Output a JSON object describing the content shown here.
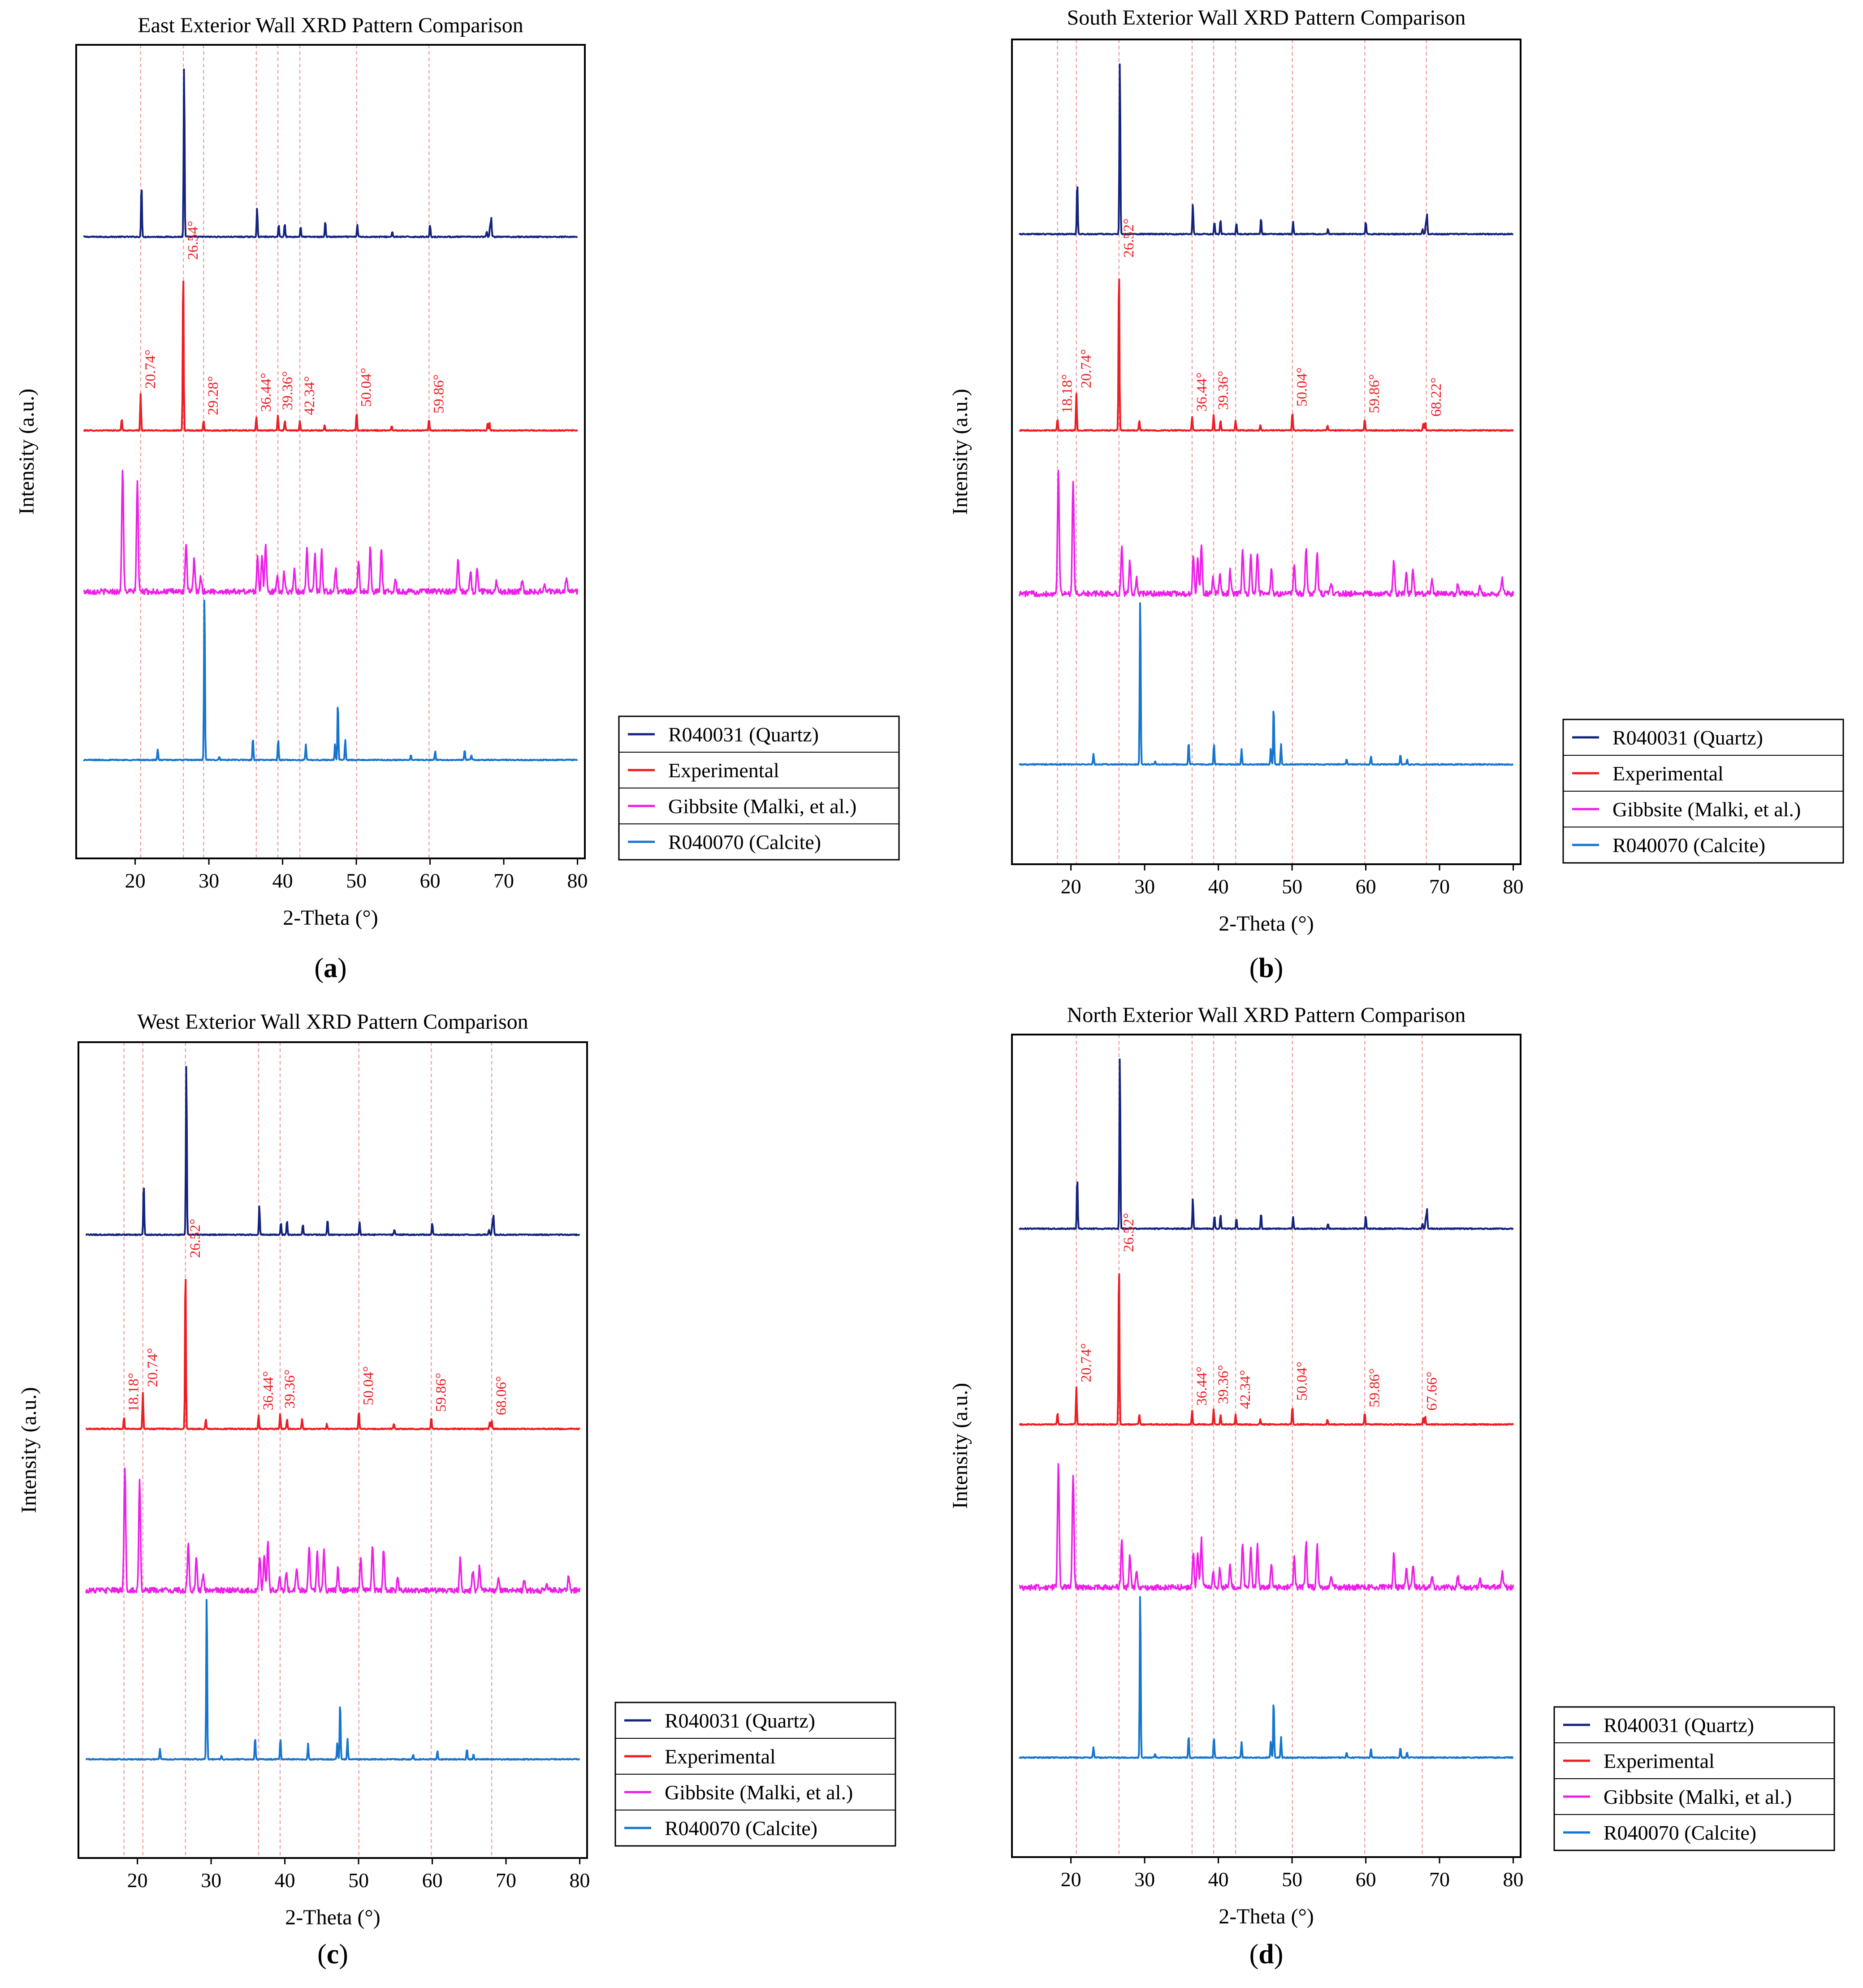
{
  "colors": {
    "quartz": "#13237e",
    "experimental": "#ee1d23",
    "gibbsite": "#ed1ee8",
    "calcite": "#1675cf",
    "guide": "#f3a1a6",
    "axis": "#000000"
  },
  "legend_entries": [
    {
      "label": "R040031 (Quartz)",
      "color_key": "quartz"
    },
    {
      "label": "Experimental",
      "color_key": "experimental"
    },
    {
      "label": "Gibbsite (Malki, et al.)",
      "color_key": "gibbsite"
    },
    {
      "label": "R040070 (Calcite)",
      "color_key": "calcite"
    }
  ],
  "reference_patterns": {
    "quartz": [
      [
        20.86,
        0.3
      ],
      [
        26.64,
        1.0
      ],
      [
        36.54,
        0.17
      ],
      [
        39.47,
        0.07
      ],
      [
        40.29,
        0.08
      ],
      [
        42.45,
        0.06
      ],
      [
        45.79,
        0.09
      ],
      [
        50.14,
        0.07
      ],
      [
        54.87,
        0.03
      ],
      [
        60.0,
        0.07
      ],
      [
        67.7,
        0.03
      ],
      [
        68.14,
        0.06
      ],
      [
        68.3,
        0.11
      ]
    ],
    "calcite": [
      [
        23.06,
        0.06
      ],
      [
        29.4,
        1.0
      ],
      [
        31.42,
        0.02
      ],
      [
        35.97,
        0.13
      ],
      [
        39.4,
        0.12
      ],
      [
        43.15,
        0.09
      ],
      [
        47.12,
        0.1
      ],
      [
        47.5,
        0.35
      ],
      [
        48.5,
        0.12
      ],
      [
        57.4,
        0.03
      ],
      [
        60.7,
        0.05
      ],
      [
        64.7,
        0.06
      ],
      [
        65.6,
        0.03
      ]
    ],
    "gibbsite": [
      [
        18.3,
        1.0
      ],
      [
        20.3,
        0.9
      ],
      [
        26.9,
        0.38
      ],
      [
        28.0,
        0.26
      ],
      [
        28.9,
        0.12
      ],
      [
        36.6,
        0.28
      ],
      [
        37.2,
        0.28
      ],
      [
        37.7,
        0.38
      ],
      [
        39.3,
        0.12
      ],
      [
        40.2,
        0.15
      ],
      [
        41.6,
        0.18
      ],
      [
        43.3,
        0.36
      ],
      [
        44.4,
        0.3
      ],
      [
        45.3,
        0.33
      ],
      [
        47.2,
        0.18
      ],
      [
        50.3,
        0.25
      ],
      [
        51.9,
        0.36
      ],
      [
        53.4,
        0.33
      ],
      [
        55.3,
        0.1
      ],
      [
        63.8,
        0.26
      ],
      [
        65.5,
        0.16
      ],
      [
        66.4,
        0.19
      ],
      [
        69.0,
        0.1
      ],
      [
        72.5,
        0.08
      ],
      [
        75.5,
        0.06
      ],
      [
        78.5,
        0.12
      ]
    ],
    "experimental": [
      [
        18.18,
        0.07
      ],
      [
        20.74,
        0.22
      ],
      [
        26.52,
        1.0
      ],
      [
        29.28,
        0.06
      ],
      [
        36.44,
        0.08
      ],
      [
        39.36,
        0.09
      ],
      [
        40.3,
        0.06
      ],
      [
        42.34,
        0.06
      ],
      [
        45.7,
        0.03
      ],
      [
        50.04,
        0.11
      ],
      [
        54.8,
        0.03
      ],
      [
        59.86,
        0.07
      ],
      [
        67.8,
        0.04
      ],
      [
        68.06,
        0.05
      ]
    ]
  },
  "chart_data": [
    {
      "type": "line",
      "panel": "(a)",
      "title": "East Exterior Wall XRD Pattern Comparison",
      "xlabel": "2-Theta (°)",
      "ylabel": "Intensity  (a.u.)",
      "xlim": [
        12,
        81
      ],
      "xticks": [
        20,
        30,
        40,
        50,
        60,
        70,
        80
      ],
      "legend": "right-bottom, outside plot area",
      "peak_labels": [
        20.74,
        26.54,
        29.28,
        36.44,
        39.36,
        42.34,
        50.04,
        59.86
      ],
      "peak_label_texts": [
        "20.74°",
        "26.54°",
        "29.28°",
        "36.44°",
        "39.36°",
        "42.34°",
        "50.04°",
        "59.86°"
      ],
      "reference_lines": [
        20.74,
        26.54,
        29.28,
        36.44,
        39.36,
        42.34,
        50.04,
        59.86
      ],
      "series": [
        {
          "name": "R040031 (Quartz)",
          "pattern": "quartz"
        },
        {
          "name": "Experimental",
          "pattern": "experimental"
        },
        {
          "name": "Gibbsite (Malki, et al.)",
          "pattern": "gibbsite"
        },
        {
          "name": "R040070 (Calcite)",
          "pattern": "calcite"
        }
      ]
    },
    {
      "type": "line",
      "panel": "(b)",
      "title": "South Exterior Wall XRD Pattern Comparison",
      "xlabel": "2-Theta (°)",
      "ylabel": "Intensity  (a.u.)",
      "xlim": [
        12,
        81
      ],
      "xticks": [
        20,
        30,
        40,
        50,
        60,
        70,
        80
      ],
      "legend": "right-bottom, outside plot area",
      "peak_labels": [
        18.18,
        20.74,
        26.52,
        36.44,
        39.36,
        50.04,
        59.86,
        68.22
      ],
      "peak_label_texts": [
        "18.18°",
        "20.74°",
        "26.52°",
        "36.44°",
        "39.36°",
        "50.04°",
        "59.86°",
        "68.22°"
      ],
      "reference_lines": [
        18.18,
        20.74,
        26.52,
        36.44,
        39.36,
        42.34,
        50.04,
        59.86,
        68.22
      ],
      "series": [
        {
          "name": "R040031 (Quartz)",
          "pattern": "quartz"
        },
        {
          "name": "Experimental",
          "pattern": "experimental"
        },
        {
          "name": "Gibbsite (Malki, et al.)",
          "pattern": "gibbsite"
        },
        {
          "name": "R040070 (Calcite)",
          "pattern": "calcite"
        }
      ]
    },
    {
      "type": "line",
      "panel": "(c)",
      "title": "West Exterior Wall XRD Pattern Comparison",
      "xlabel": "2-Theta (°)",
      "ylabel": "Intensity  (a.u.)",
      "xlim": [
        12,
        81
      ],
      "xticks": [
        20,
        30,
        40,
        50,
        60,
        70,
        80
      ],
      "legend": "right-bottom, outside plot area",
      "peak_labels": [
        18.18,
        20.74,
        26.52,
        36.44,
        39.36,
        50.04,
        59.86,
        68.06
      ],
      "peak_label_texts": [
        "18.18°",
        "20.74°",
        "26.52°",
        "36.44°",
        "39.36°",
        "50.04°",
        "59.86°",
        "68.06°"
      ],
      "reference_lines": [
        18.18,
        20.74,
        26.52,
        36.44,
        39.36,
        50.04,
        59.86,
        68.06
      ],
      "series": [
        {
          "name": "R040031 (Quartz)",
          "pattern": "quartz"
        },
        {
          "name": "Experimental",
          "pattern": "experimental"
        },
        {
          "name": "Gibbsite (Malki, et al.)",
          "pattern": "gibbsite"
        },
        {
          "name": "R040070 (Calcite)",
          "pattern": "calcite"
        }
      ]
    },
    {
      "type": "line",
      "panel": "(d)",
      "title": "North Exterior Wall XRD Pattern Comparison",
      "xlabel": "2-Theta (°)",
      "ylabel": "Intensity  (a.u.)",
      "xlim": [
        12,
        81
      ],
      "xticks": [
        20,
        30,
        40,
        50,
        60,
        70,
        80
      ],
      "legend": "right-bottom, outside plot area",
      "peak_labels": [
        20.74,
        26.52,
        36.44,
        39.36,
        42.34,
        50.04,
        59.86,
        67.66
      ],
      "peak_label_texts": [
        "20.74°",
        "26.52°",
        "36.44°",
        "39.36°",
        "42.34°",
        "50.04°",
        "59.86°",
        "67.66°"
      ],
      "reference_lines": [
        20.74,
        26.52,
        36.44,
        39.36,
        42.34,
        50.04,
        59.86,
        67.66
      ],
      "series": [
        {
          "name": "R040031 (Quartz)",
          "pattern": "quartz"
        },
        {
          "name": "Experimental",
          "pattern": "experimental"
        },
        {
          "name": "Gibbsite (Malki, et al.)",
          "pattern": "gibbsite"
        },
        {
          "name": "R040070 (Calcite)",
          "pattern": "calcite"
        }
      ]
    }
  ]
}
